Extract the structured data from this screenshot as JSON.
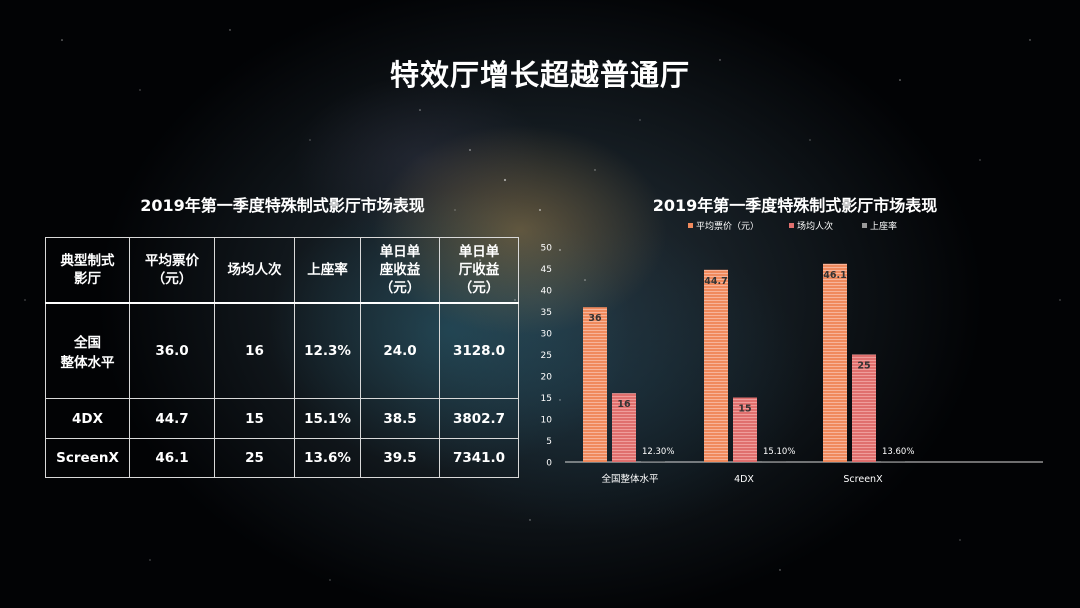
{
  "title": "特效厅增长超越普通厅",
  "table": {
    "title": "2019年第一季度特殊制式影厅市场表现",
    "columns": [
      {
        "line1": "典型制式",
        "line2": "影厅",
        "line3": ""
      },
      {
        "line1": "平均票价",
        "line2": "（元）",
        "line3": ""
      },
      {
        "line1": "场均人次",
        "line2": "",
        "line3": ""
      },
      {
        "line1": "上座率",
        "line2": "",
        "line3": ""
      },
      {
        "line1": "单日单",
        "line2": "座收益",
        "line3": "（元）"
      },
      {
        "line1": "单日单",
        "line2": "厅收益",
        "line3": "（元）"
      }
    ],
    "rows": [
      {
        "name_line1": "全国",
        "name_line2": "整体水平",
        "cells": [
          "36.0",
          "16",
          "12.3%",
          "24.0",
          "3128.0"
        ]
      },
      {
        "name_line1": "4DX",
        "name_line2": "",
        "cells": [
          "44.7",
          "15",
          "15.1%",
          "38.5",
          "3802.7"
        ]
      },
      {
        "name_line1": "ScreenX",
        "name_line2": "",
        "cells": [
          "46.1",
          "25",
          "13.6%",
          "39.5",
          "7341.0"
        ]
      }
    ]
  },
  "chart_data": {
    "type": "bar",
    "title": "2019年第一季度特殊制式影厅市场表现",
    "categories": [
      "全国整体水平",
      "4DX",
      "ScreenX"
    ],
    "series": [
      {
        "name": "平均票价（元）",
        "values": [
          36,
          44.7,
          46.1
        ],
        "labels": [
          "36",
          "44.7",
          "46.1"
        ],
        "color": "#f08a5d"
      },
      {
        "name": "场均人次",
        "values": [
          16,
          15,
          25
        ],
        "labels": [
          "16",
          "15",
          "25"
        ],
        "color": "#e0706e"
      },
      {
        "name": "上座率",
        "values": [
          0.123,
          0.151,
          0.136
        ],
        "labels": [
          "12.30%",
          "15.10%",
          "13.60%"
        ],
        "color": "#9a9a9a"
      }
    ],
    "yticks": [
      "0",
      "5",
      "10",
      "15",
      "20",
      "25",
      "30",
      "35",
      "40",
      "45",
      "50"
    ],
    "ylim": [
      0,
      50
    ],
    "legend": "top",
    "grid": false
  }
}
